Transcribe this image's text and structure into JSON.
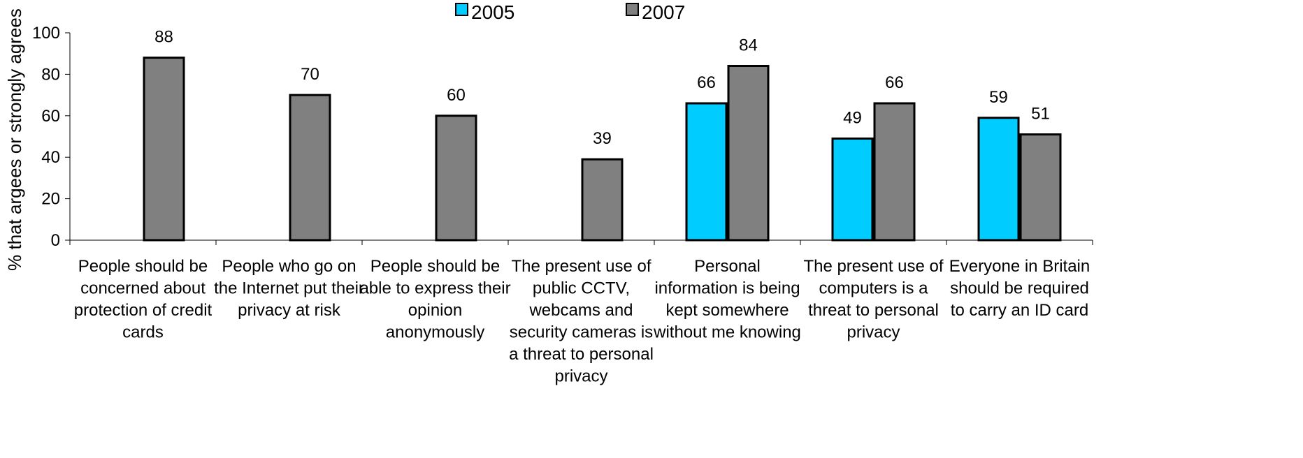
{
  "chart_data": {
    "type": "bar",
    "title": "",
    "xlabel": "",
    "ylabel": "% that argees or strongly agrees",
    "ylim": [
      0,
      100
    ],
    "yticks": [
      0,
      20,
      40,
      60,
      80,
      100
    ],
    "grid": false,
    "legend_position": "top-center",
    "categories": [
      [
        "People should be",
        "concerned about",
        "protection of credit",
        "cards"
      ],
      [
        "People who go on",
        "the Internet put their",
        "privacy at risk"
      ],
      [
        "People should be",
        "able to express their",
        "opinion",
        "anonymously"
      ],
      [
        "The present use of",
        "public CCTV,",
        "webcams and",
        "security cameras is",
        "a threat to personal",
        "privacy"
      ],
      [
        "Personal",
        "information is being",
        "kept somewhere",
        "without me knowing"
      ],
      [
        "The present use of",
        "computers is a",
        "threat to personal",
        "privacy"
      ],
      [
        "Everyone in Britain",
        "should be required",
        "to carry an ID card"
      ]
    ],
    "series": [
      {
        "name": "2005",
        "color": "#00ccff",
        "values": [
          null,
          null,
          null,
          null,
          66,
          49,
          59
        ]
      },
      {
        "name": "2007",
        "color": "#808080",
        "values": [
          88,
          70,
          60,
          39,
          84,
          66,
          51
        ]
      }
    ]
  }
}
